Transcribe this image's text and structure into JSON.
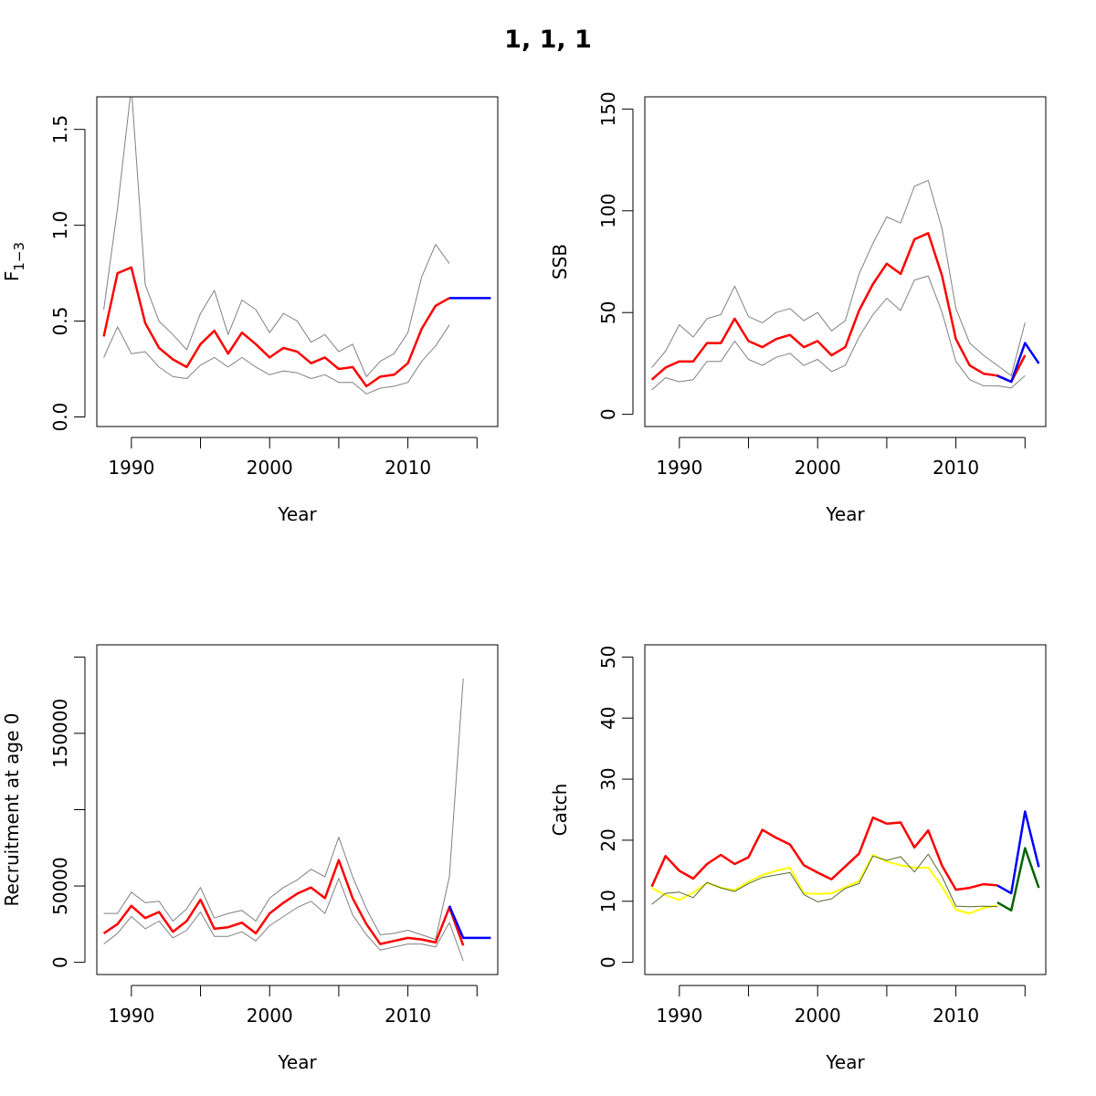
{
  "figure_title": "1, 1, 1",
  "colors": {
    "estimate": "#ff0000",
    "confidence": "#808080",
    "forecast": "#0000ff",
    "observed": "#ffff00",
    "observed_line": "#556b2f",
    "forecast_observed": "#006400"
  },
  "chart_data": [
    {
      "type": "line",
      "id": "f",
      "ylabel": "F",
      "ylabel_sub": "1−3",
      "xlabel": "Year",
      "xlim": [
        1987.5,
        2016.5
      ],
      "ylim": [
        -0.05,
        1.67
      ],
      "xticks": [
        1990,
        1995,
        2000,
        2005,
        2010,
        2015
      ],
      "xtick_labels": [
        "1990",
        "",
        "2000",
        "",
        "2010",
        ""
      ],
      "yticks": [
        0.0,
        0.5,
        1.0,
        1.5
      ],
      "ytick_labels": [
        "0.0",
        "0.5",
        "1.0",
        "1.5"
      ],
      "series": [
        {
          "role": "estimate",
          "color": "#ff0000",
          "width": 2.5,
          "x": [
            1988,
            1989,
            1990,
            1991,
            1992,
            1993,
            1994,
            1995,
            1996,
            1997,
            1998,
            1999,
            2000,
            2001,
            2002,
            2003,
            2004,
            2005,
            2006,
            2007,
            2008,
            2009,
            2010,
            2011,
            2012,
            2013
          ],
          "y": [
            0.42,
            0.75,
            0.78,
            0.49,
            0.36,
            0.3,
            0.26,
            0.38,
            0.45,
            0.33,
            0.44,
            0.38,
            0.31,
            0.36,
            0.34,
            0.28,
            0.31,
            0.25,
            0.26,
            0.16,
            0.21,
            0.22,
            0.28,
            0.46,
            0.58,
            0.62
          ]
        },
        {
          "role": "upper",
          "color": "#808080",
          "width": 1,
          "x": [
            1988,
            1989,
            1990,
            1991,
            1992,
            1993,
            1994,
            1995,
            1996,
            1997,
            1998,
            1999,
            2000,
            2001,
            2002,
            2003,
            2004,
            2005,
            2006,
            2007,
            2008,
            2009,
            2010,
            2011,
            2012,
            2013
          ],
          "y": [
            0.56,
            1.09,
            1.72,
            0.69,
            0.5,
            0.43,
            0.35,
            0.54,
            0.66,
            0.43,
            0.61,
            0.56,
            0.44,
            0.54,
            0.5,
            0.39,
            0.43,
            0.34,
            0.38,
            0.21,
            0.29,
            0.33,
            0.44,
            0.73,
            0.9,
            0.8
          ]
        },
        {
          "role": "lower",
          "color": "#808080",
          "width": 1,
          "x": [
            1988,
            1989,
            1990,
            1991,
            1992,
            1993,
            1994,
            1995,
            1996,
            1997,
            1998,
            1999,
            2000,
            2001,
            2002,
            2003,
            2004,
            2005,
            2006,
            2007,
            2008,
            2009,
            2010,
            2011,
            2012,
            2013
          ],
          "y": [
            0.31,
            0.47,
            0.33,
            0.34,
            0.26,
            0.21,
            0.2,
            0.27,
            0.31,
            0.26,
            0.31,
            0.26,
            0.22,
            0.24,
            0.23,
            0.2,
            0.22,
            0.18,
            0.18,
            0.12,
            0.15,
            0.16,
            0.18,
            0.29,
            0.37,
            0.48
          ]
        },
        {
          "role": "forecast",
          "color": "#0000ff",
          "width": 2.5,
          "x": [
            2013,
            2014,
            2015,
            2016
          ],
          "y": [
            0.62,
            0.62,
            0.62,
            0.62
          ]
        }
      ]
    },
    {
      "type": "line",
      "id": "ssb",
      "ylabel": "SSB",
      "xlabel": "Year",
      "xlim": [
        1987.5,
        2016.5
      ],
      "ylim": [
        -6,
        156
      ],
      "xticks": [
        1990,
        1995,
        2000,
        2005,
        2010,
        2015
      ],
      "xtick_labels": [
        "1990",
        "",
        "2000",
        "",
        "2010",
        ""
      ],
      "yticks": [
        0,
        50,
        100,
        150
      ],
      "ytick_labels": [
        "0",
        "50",
        "100",
        "150"
      ],
      "series": [
        {
          "role": "estimate",
          "color": "#ff0000",
          "width": 2.5,
          "x": [
            1988,
            1989,
            1990,
            1991,
            1992,
            1993,
            1994,
            1995,
            1996,
            1997,
            1998,
            1999,
            2000,
            2001,
            2002,
            2003,
            2004,
            2005,
            2006,
            2007,
            2008,
            2009,
            2010,
            2011,
            2012,
            2013,
            2014,
            2015
          ],
          "y": [
            17,
            23,
            26,
            26,
            35,
            35,
            47,
            36,
            33,
            37,
            39,
            33,
            36,
            29,
            33,
            51,
            64,
            74,
            69,
            86,
            89,
            68,
            37,
            24,
            20,
            19,
            16,
            29
          ]
        },
        {
          "role": "upper",
          "color": "#808080",
          "width": 1,
          "x": [
            1988,
            1989,
            1990,
            1991,
            1992,
            1993,
            1994,
            1995,
            1996,
            1997,
            1998,
            1999,
            2000,
            2001,
            2002,
            2003,
            2004,
            2005,
            2006,
            2007,
            2008,
            2009,
            2010,
            2011,
            2012,
            2013,
            2014,
            2015
          ],
          "y": [
            23,
            31,
            44,
            38,
            47,
            49,
            63,
            48,
            45,
            50,
            52,
            46,
            50,
            41,
            46,
            69,
            84,
            97,
            94,
            112,
            115,
            91,
            52,
            35,
            29,
            24,
            19,
            45
          ]
        },
        {
          "role": "lower",
          "color": "#808080",
          "width": 1,
          "x": [
            1988,
            1989,
            1990,
            1991,
            1992,
            1993,
            1994,
            1995,
            1996,
            1997,
            1998,
            1999,
            2000,
            2001,
            2002,
            2003,
            2004,
            2005,
            2006,
            2007,
            2008,
            2009,
            2010,
            2011,
            2012,
            2013,
            2014,
            2015
          ],
          "y": [
            12,
            18,
            16,
            17,
            26,
            26,
            36,
            27,
            24,
            28,
            30,
            24,
            27,
            21,
            24,
            38,
            49,
            57,
            51,
            66,
            68,
            50,
            26,
            17,
            14,
            14,
            13,
            19
          ]
        },
        {
          "role": "forecast",
          "color": "#0000ff",
          "width": 2.5,
          "x": [
            2013,
            2014,
            2015,
            2016
          ],
          "y": [
            19,
            16,
            35,
            25
          ]
        }
      ]
    },
    {
      "type": "line",
      "id": "recruitment",
      "ylabel": "Recruitment at age 0",
      "xlabel": "Year",
      "xlim": [
        1987.5,
        2016.5
      ],
      "ylim": [
        -8000,
        208000
      ],
      "xticks": [
        1990,
        1995,
        2000,
        2005,
        2010,
        2015
      ],
      "xtick_labels": [
        "1990",
        "",
        "2000",
        "",
        "2010",
        ""
      ],
      "yticks": [
        0,
        50000,
        100000,
        150000,
        200000
      ],
      "ytick_labels": [
        "0",
        "50000",
        "",
        "150000",
        ""
      ],
      "series": [
        {
          "role": "estimate",
          "color": "#ff0000",
          "width": 2.5,
          "x": [
            1988,
            1989,
            1990,
            1991,
            1992,
            1993,
            1994,
            1995,
            1996,
            1997,
            1998,
            1999,
            2000,
            2001,
            2002,
            2003,
            2004,
            2005,
            2006,
            2007,
            2008,
            2009,
            2010,
            2011,
            2012,
            2013,
            2014
          ],
          "y": [
            19000,
            25000,
            37000,
            29000,
            33000,
            20000,
            27000,
            41000,
            22000,
            23000,
            26000,
            19000,
            32000,
            39000,
            45000,
            49000,
            42000,
            67000,
            42000,
            25000,
            12000,
            14000,
            16000,
            15000,
            13000,
            36000,
            11000
          ]
        },
        {
          "role": "upper",
          "color": "#808080",
          "width": 1,
          "x": [
            1988,
            1989,
            1990,
            1991,
            1992,
            1993,
            1994,
            1995,
            1996,
            1997,
            1998,
            1999,
            2000,
            2001,
            2002,
            2003,
            2004,
            2005,
            2006,
            2007,
            2008,
            2009,
            2010,
            2011,
            2012,
            2013,
            2014
          ],
          "y": [
            32000,
            32000,
            46000,
            39000,
            40000,
            27000,
            35000,
            49000,
            29000,
            32000,
            34000,
            27000,
            42000,
            49000,
            54000,
            61000,
            56000,
            82000,
            56000,
            35000,
            18000,
            19000,
            21000,
            18000,
            15000,
            56000,
            186000
          ]
        },
        {
          "role": "lower",
          "color": "#808080",
          "width": 1,
          "x": [
            1988,
            1989,
            1990,
            1991,
            1992,
            1993,
            1994,
            1995,
            1996,
            1997,
            1998,
            1999,
            2000,
            2001,
            2002,
            2003,
            2004,
            2005,
            2006,
            2007,
            2008,
            2009,
            2010,
            2011,
            2012,
            2013,
            2014
          ],
          "y": [
            12000,
            19000,
            30000,
            22000,
            27000,
            16000,
            21000,
            33000,
            17000,
            17000,
            20000,
            14000,
            24000,
            30000,
            36000,
            40000,
            32000,
            55000,
            31000,
            18000,
            8000,
            10000,
            12000,
            12000,
            10000,
            26000,
            1000
          ]
        },
        {
          "role": "forecast",
          "color": "#0000ff",
          "width": 2.5,
          "x": [
            2013,
            2014,
            2015,
            2016
          ],
          "y": [
            37000,
            16000,
            16000,
            16000
          ]
        }
      ]
    },
    {
      "type": "line",
      "id": "catch",
      "ylabel": "Catch",
      "xlabel": "Year",
      "xlim": [
        1987.5,
        2016.5
      ],
      "ylim": [
        -2,
        52
      ],
      "xticks": [
        1990,
        1995,
        2000,
        2005,
        2010,
        2015
      ],
      "xtick_labels": [
        "1990",
        "",
        "2000",
        "",
        "2010",
        ""
      ],
      "yticks": [
        0,
        10,
        20,
        30,
        40,
        50
      ],
      "ytick_labels": [
        "0",
        "10",
        "20",
        "30",
        "40",
        "50"
      ],
      "series": [
        {
          "role": "observed",
          "color": "#ffff00",
          "width": 2,
          "x": [
            1988,
            1989,
            1990,
            1991,
            1992,
            1993,
            1994,
            1995,
            1996,
            1997,
            1998,
            1999,
            2000,
            2001,
            2002,
            2003,
            2004,
            2005,
            2006,
            2007,
            2008,
            2009,
            2010,
            2011,
            2012,
            2013
          ],
          "y": [
            12.2,
            11.0,
            10.2,
            11.4,
            13.0,
            12.2,
            11.8,
            13.2,
            14.3,
            15.0,
            15.5,
            11.3,
            11.2,
            11.3,
            12.3,
            13.3,
            17.6,
            16.5,
            15.9,
            15.5,
            15.5,
            12.4,
            8.6,
            8.0,
            8.9,
            9.3
          ]
        },
        {
          "role": "observed-line",
          "color": "#556b2f",
          "width": 1,
          "x": [
            1988,
            1989,
            1990,
            1991,
            1992,
            1993,
            1994,
            1995,
            1996,
            1997,
            1998,
            1999,
            2000,
            2001,
            2002,
            2003,
            2004,
            2005,
            2006,
            2007,
            2008,
            2009,
            2010,
            2011,
            2012,
            2013
          ],
          "y": [
            9.5,
            11.3,
            11.5,
            10.6,
            13.1,
            12.2,
            11.6,
            12.9,
            13.9,
            14.3,
            14.7,
            11.1,
            9.9,
            10.4,
            12.1,
            12.9,
            17.4,
            16.7,
            17.3,
            14.8,
            17.7,
            14.0,
            9.2,
            9.1,
            9.2,
            9.1
          ]
        },
        {
          "role": "estimate",
          "color": "#ff0000",
          "width": 2.5,
          "x": [
            1988,
            1989,
            1990,
            1991,
            1992,
            1993,
            1994,
            1995,
            1996,
            1997,
            1998,
            1999,
            2000,
            2001,
            2002,
            2003,
            2004,
            2005,
            2006,
            2007,
            2008,
            2009,
            2010,
            2011,
            2012,
            2013
          ],
          "y": [
            12.4,
            17.4,
            15.0,
            13.7,
            16.1,
            17.6,
            16.1,
            17.2,
            21.7,
            20.4,
            19.3,
            15.9,
            14.7,
            13.6,
            15.7,
            17.8,
            23.7,
            22.7,
            22.9,
            18.8,
            21.6,
            15.8,
            11.9,
            12.2,
            12.8,
            12.6
          ]
        },
        {
          "role": "forecast",
          "color": "#0000ff",
          "width": 2.5,
          "x": [
            2013,
            2014,
            2015,
            2016
          ],
          "y": [
            12.6,
            11.3,
            24.7,
            15.6
          ]
        },
        {
          "role": "forecast-observed",
          "color": "#006400",
          "width": 2.5,
          "x": [
            2013,
            2014,
            2015,
            2016
          ],
          "y": [
            9.8,
            8.5,
            18.7,
            12.2
          ]
        }
      ]
    }
  ]
}
